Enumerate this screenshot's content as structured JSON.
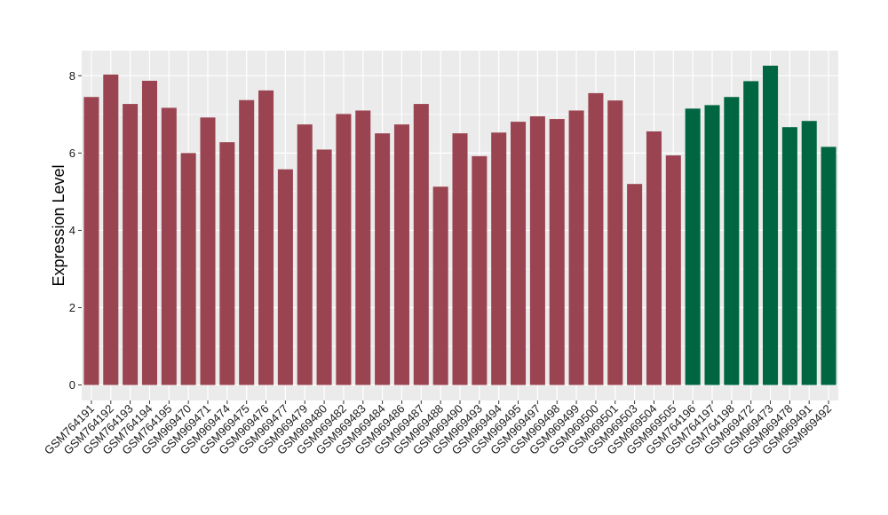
{
  "chart_data": {
    "type": "bar",
    "ylabel": "Expression Level",
    "xlabel": "",
    "title": "",
    "ylim": [
      -0.4,
      8.65
    ],
    "yticks": [
      0,
      2,
      4,
      6,
      8
    ],
    "grid": true,
    "legend": "none",
    "categories": [
      "GSM764191",
      "GSM764192",
      "GSM764193",
      "GSM764194",
      "GSM764195",
      "GSM969470",
      "GSM969471",
      "GSM969474",
      "GSM969475",
      "GSM969476",
      "GSM969477",
      "GSM969479",
      "GSM969480",
      "GSM969482",
      "GSM969483",
      "GSM969484",
      "GSM969486",
      "GSM969487",
      "GSM969488",
      "GSM969490",
      "GSM969493",
      "GSM969494",
      "GSM969495",
      "GSM969497",
      "GSM969498",
      "GSM969499",
      "GSM969500",
      "GSM969501",
      "GSM969503",
      "GSM969504",
      "GSM969505",
      "GSM764196",
      "GSM764197",
      "GSM764198",
      "GSM969472",
      "GSM969473",
      "GSM969478",
      "GSM969491",
      "GSM969492"
    ],
    "values": [
      7.45,
      8.03,
      7.27,
      7.87,
      7.17,
      6.0,
      6.92,
      6.28,
      7.37,
      7.62,
      5.58,
      6.74,
      6.09,
      7.01,
      7.1,
      6.51,
      6.74,
      7.27,
      5.13,
      6.51,
      5.92,
      6.53,
      6.81,
      6.95,
      6.88,
      7.1,
      7.55,
      7.36,
      5.2,
      6.56,
      5.94,
      7.15,
      7.24,
      7.45,
      7.86,
      8.26,
      6.67,
      6.83,
      6.16
    ],
    "group_sizes": [
      31,
      8
    ],
    "colors": [
      "#9b4451",
      "#006642"
    ],
    "panel_bg": "#ebebeb",
    "grid_color": "#ffffff"
  }
}
